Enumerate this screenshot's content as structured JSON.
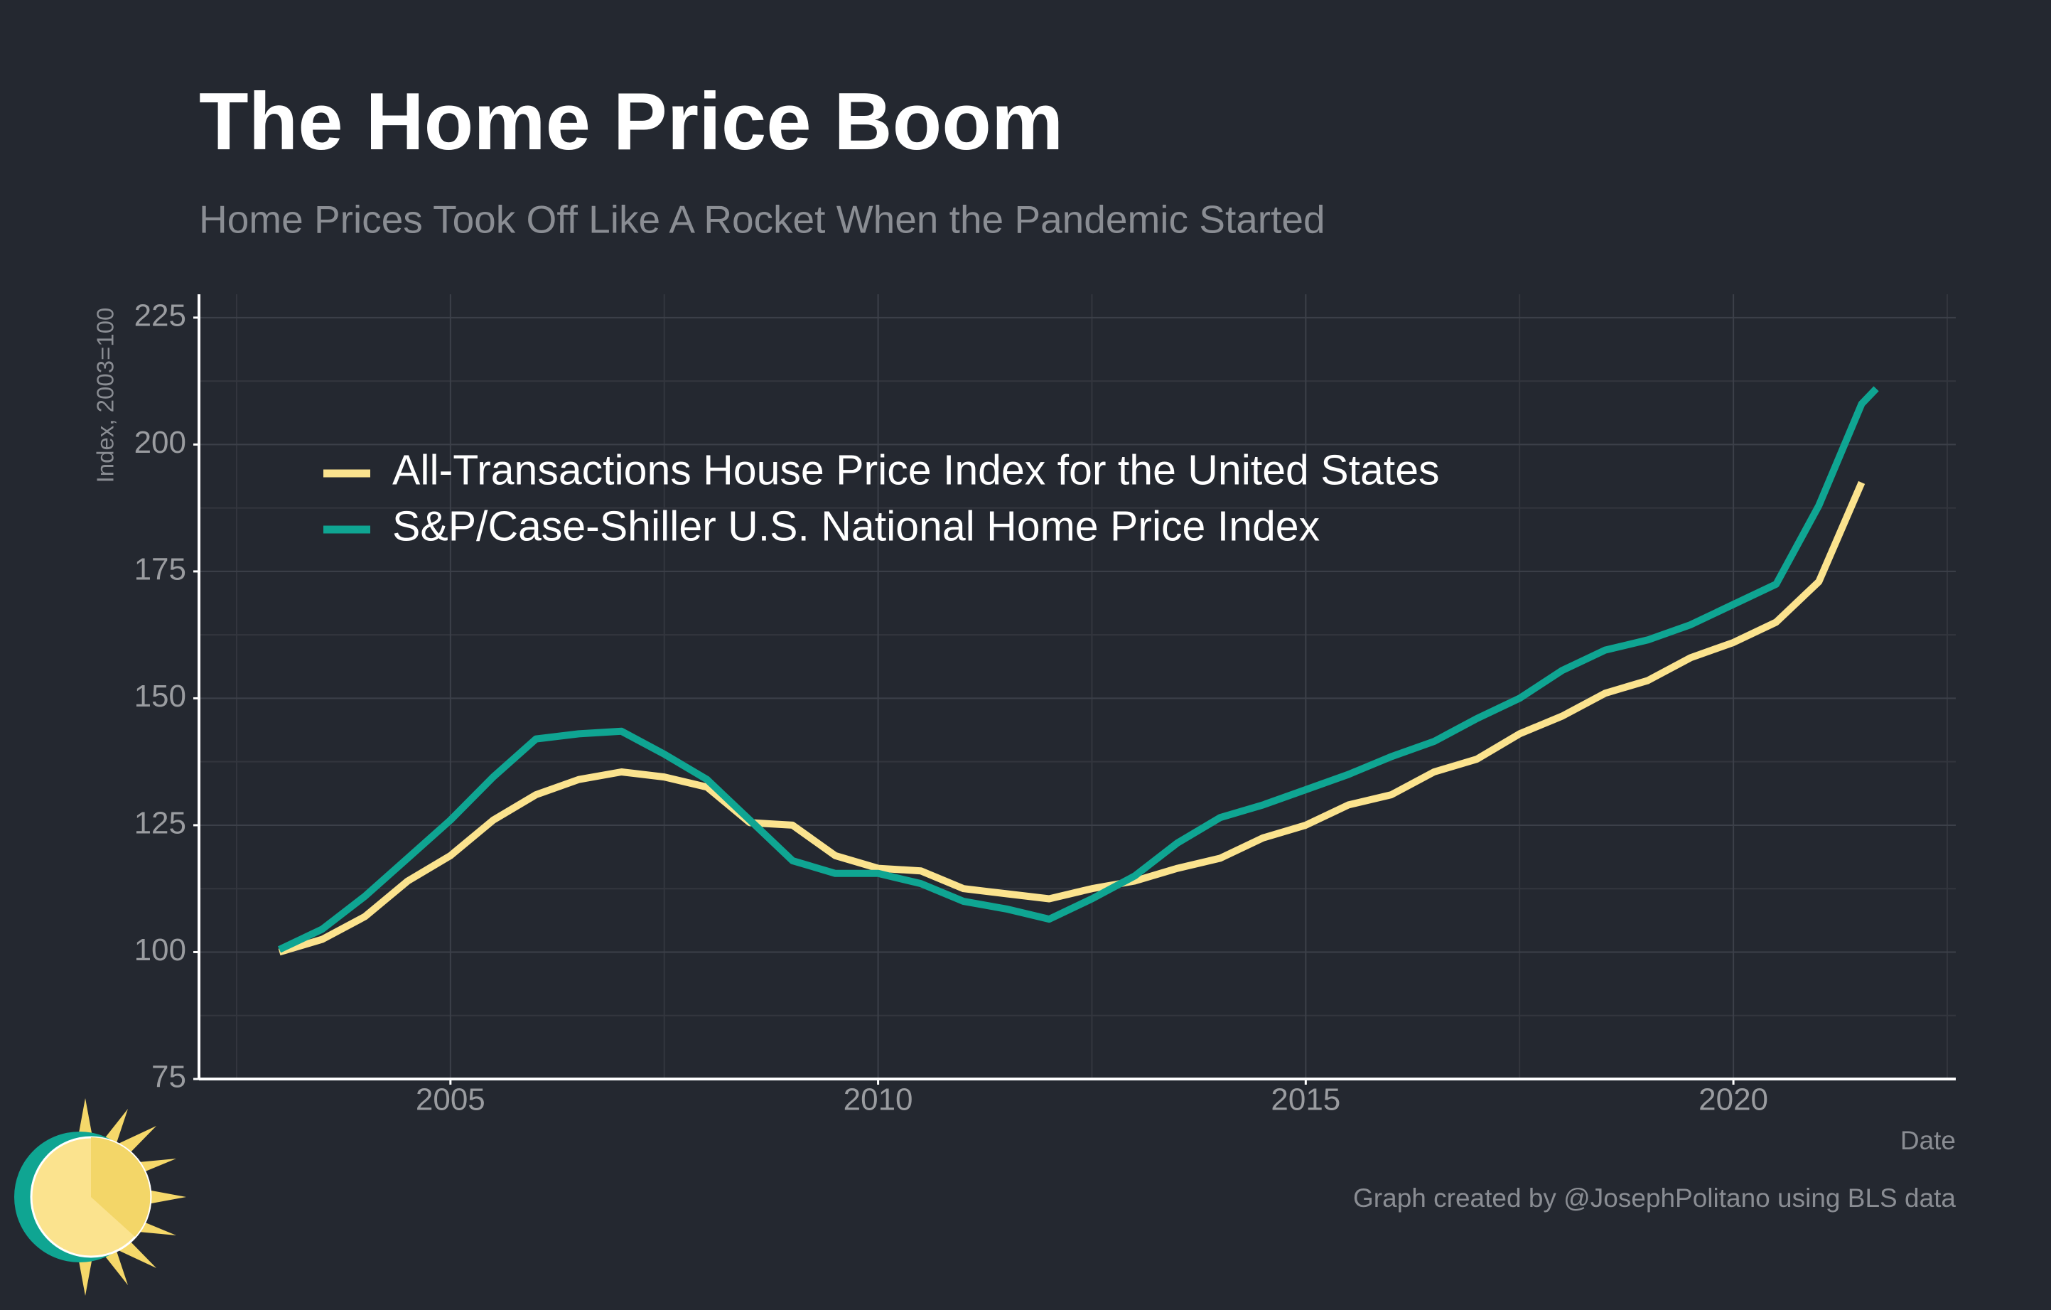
{
  "chart_data": {
    "type": "line",
    "title": "The Home Price Boom",
    "subtitle": "Home Prices Took Off Like A Rocket When the Pandemic Started",
    "x_label": "Date",
    "y_label": "Index, 2003=100",
    "caption": "Graph created by @JosephPolitano using BLS data",
    "x": [
      2003,
      2003.5,
      2004,
      2004.5,
      2005,
      2005.5,
      2006,
      2006.5,
      2007,
      2007.5,
      2008,
      2008.5,
      2009,
      2009.5,
      2010,
      2010.5,
      2011,
      2011.5,
      2012,
      2012.5,
      2013,
      2013.5,
      2014,
      2014.5,
      2015,
      2015.5,
      2016,
      2016.5,
      2017,
      2017.5,
      2018,
      2018.5,
      2019,
      2019.5,
      2020,
      2020.5,
      2021,
      2021.5,
      2021.67
    ],
    "series": [
      {
        "name": "All-Transactions House Price Index for the United States",
        "color": "#fbe38e",
        "values": [
          100,
          102.5,
          107,
          114,
          119,
          126,
          131,
          134,
          135.5,
          134.5,
          132.5,
          125.5,
          125,
          119,
          116.5,
          116,
          112.5,
          111.5,
          110.5,
          112.5,
          114,
          116.5,
          118.5,
          122.5,
          125,
          129,
          131,
          135.5,
          138,
          143,
          146.5,
          151,
          153.5,
          158,
          161,
          165,
          173,
          192.5,
          null
        ]
      },
      {
        "name": "S&P/Case-Shiller U.S. National Home Price Index",
        "color": "#0fa592",
        "values": [
          100.5,
          104.5,
          111,
          118.5,
          126,
          134.5,
          142,
          143,
          143.5,
          139,
          134,
          126,
          118,
          115.5,
          115.5,
          113.5,
          110,
          108.5,
          106.5,
          110.5,
          115,
          121.5,
          126.5,
          129,
          132,
          135,
          138.5,
          141.5,
          146,
          150,
          155.5,
          159.5,
          161.5,
          164.5,
          168.5,
          172.5,
          188,
          208,
          211
        ]
      }
    ],
    "xlim": [
      2002.06,
      2022.6
    ],
    "ylim": [
      75,
      229.6
    ],
    "xticks": [
      2005,
      2010,
      2015,
      2020
    ],
    "yticks": [
      75,
      100,
      125,
      150,
      175,
      200,
      225
    ],
    "grid": true,
    "legend_position": "upper left"
  }
}
